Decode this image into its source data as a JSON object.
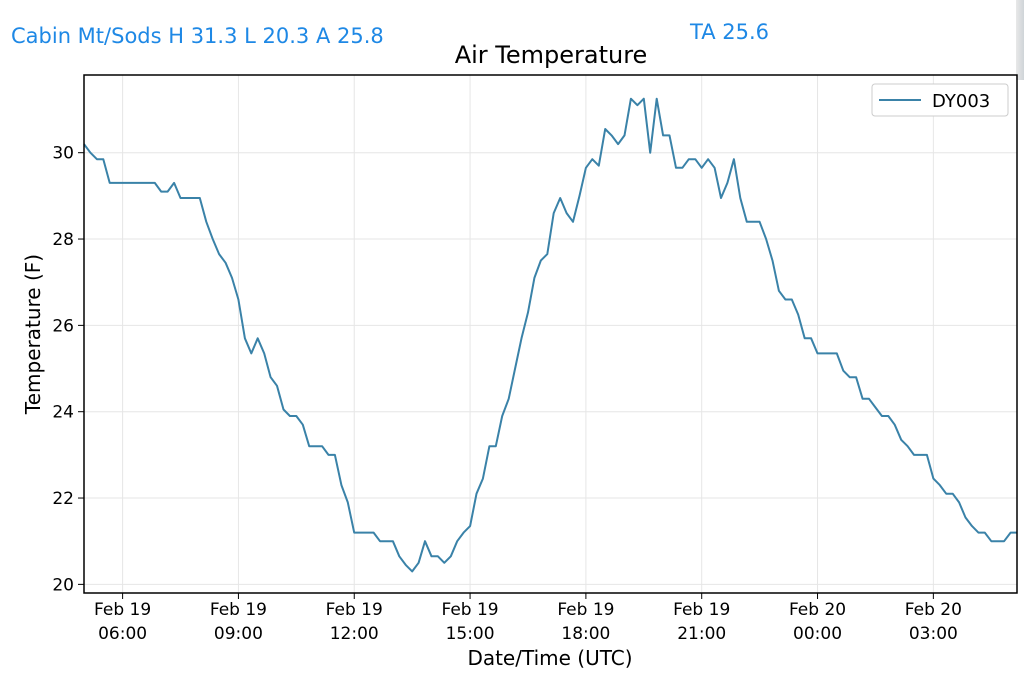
{
  "header": {
    "station_summary": "Cabin Mt/Sods H 31.3 L 20.3 A 25.8",
    "ta_value": "TA 25.6"
  },
  "colors": {
    "header_text": "#1e88e5",
    "series_line": "#3a82a8",
    "grid": "#e6e6e6",
    "axis": "#000000"
  },
  "chart_data": {
    "type": "line",
    "title": "Air Temperature",
    "xlabel": "Date/Time (UTC)",
    "ylabel": "Temperature (F)",
    "xlim": [
      "2019-02-19T05:00",
      "2019-02-20T05:10"
    ],
    "ylim": [
      19.8,
      31.8
    ],
    "grid": true,
    "legend_position": "top-right",
    "x_ticks": [
      {
        "t": "2019-02-19T06:00",
        "line1": "Feb 19",
        "line2": "06:00"
      },
      {
        "t": "2019-02-19T09:00",
        "line1": "Feb 19",
        "line2": "09:00"
      },
      {
        "t": "2019-02-19T12:00",
        "line1": "Feb 19",
        "line2": "12:00"
      },
      {
        "t": "2019-02-19T15:00",
        "line1": "Feb 19",
        "line2": "15:00"
      },
      {
        "t": "2019-02-19T18:00",
        "line1": "Feb 19",
        "line2": "18:00"
      },
      {
        "t": "2019-02-19T21:00",
        "line1": "Feb 19",
        "line2": "21:00"
      },
      {
        "t": "2019-02-20T00:00",
        "line1": "Feb 20",
        "line2": "00:00"
      },
      {
        "t": "2019-02-20T03:00",
        "line1": "Feb 20",
        "line2": "03:00"
      }
    ],
    "y_ticks": [
      "20",
      "22",
      "24",
      "26",
      "28",
      "30"
    ],
    "series": [
      {
        "name": "DY003",
        "x": [
          "2019-02-19T05:00",
          "2019-02-19T05:10",
          "2019-02-19T05:20",
          "2019-02-19T05:30",
          "2019-02-19T05:40",
          "2019-02-19T05:50",
          "2019-02-19T06:00",
          "2019-02-19T06:10",
          "2019-02-19T06:20",
          "2019-02-19T06:30",
          "2019-02-19T06:40",
          "2019-02-19T06:50",
          "2019-02-19T07:00",
          "2019-02-19T07:10",
          "2019-02-19T07:20",
          "2019-02-19T07:30",
          "2019-02-19T07:40",
          "2019-02-19T07:50",
          "2019-02-19T08:00",
          "2019-02-19T08:10",
          "2019-02-19T08:20",
          "2019-02-19T08:30",
          "2019-02-19T08:40",
          "2019-02-19T08:50",
          "2019-02-19T09:00",
          "2019-02-19T09:10",
          "2019-02-19T09:20",
          "2019-02-19T09:30",
          "2019-02-19T09:40",
          "2019-02-19T09:50",
          "2019-02-19T10:00",
          "2019-02-19T10:10",
          "2019-02-19T10:20",
          "2019-02-19T10:30",
          "2019-02-19T10:40",
          "2019-02-19T10:50",
          "2019-02-19T11:00",
          "2019-02-19T11:10",
          "2019-02-19T11:20",
          "2019-02-19T11:30",
          "2019-02-19T11:40",
          "2019-02-19T11:50",
          "2019-02-19T12:00",
          "2019-02-19T12:10",
          "2019-02-19T12:20",
          "2019-02-19T12:30",
          "2019-02-19T12:40",
          "2019-02-19T12:50",
          "2019-02-19T13:00",
          "2019-02-19T13:10",
          "2019-02-19T13:20",
          "2019-02-19T13:30",
          "2019-02-19T13:40",
          "2019-02-19T13:50",
          "2019-02-19T14:00",
          "2019-02-19T14:10",
          "2019-02-19T14:20",
          "2019-02-19T14:30",
          "2019-02-19T14:40",
          "2019-02-19T14:50",
          "2019-02-19T15:00",
          "2019-02-19T15:10",
          "2019-02-19T15:20",
          "2019-02-19T15:30",
          "2019-02-19T15:40",
          "2019-02-19T15:50",
          "2019-02-19T16:00",
          "2019-02-19T16:10",
          "2019-02-19T16:20",
          "2019-02-19T16:30",
          "2019-02-19T16:40",
          "2019-02-19T16:50",
          "2019-02-19T17:00",
          "2019-02-19T17:10",
          "2019-02-19T17:20",
          "2019-02-19T17:30",
          "2019-02-19T17:40",
          "2019-02-19T17:50",
          "2019-02-19T18:00",
          "2019-02-19T18:10",
          "2019-02-19T18:20",
          "2019-02-19T18:30",
          "2019-02-19T18:40",
          "2019-02-19T18:50",
          "2019-02-19T19:00",
          "2019-02-19T19:10",
          "2019-02-19T19:20",
          "2019-02-19T19:30",
          "2019-02-19T19:40",
          "2019-02-19T19:50",
          "2019-02-19T20:00",
          "2019-02-19T20:10",
          "2019-02-19T20:20",
          "2019-02-19T20:30",
          "2019-02-19T20:40",
          "2019-02-19T20:50",
          "2019-02-19T21:00",
          "2019-02-19T21:10",
          "2019-02-19T21:20",
          "2019-02-19T21:30",
          "2019-02-19T21:40",
          "2019-02-19T21:50",
          "2019-02-19T22:00",
          "2019-02-19T22:10",
          "2019-02-19T22:20",
          "2019-02-19T22:30",
          "2019-02-19T22:40",
          "2019-02-19T22:50",
          "2019-02-19T23:00",
          "2019-02-19T23:10",
          "2019-02-19T23:20",
          "2019-02-19T23:30",
          "2019-02-19T23:40",
          "2019-02-19T23:50",
          "2019-02-20T00:00",
          "2019-02-20T00:10",
          "2019-02-20T00:20",
          "2019-02-20T00:30",
          "2019-02-20T00:40",
          "2019-02-20T00:50",
          "2019-02-20T01:00",
          "2019-02-20T01:10",
          "2019-02-20T01:20",
          "2019-02-20T01:30",
          "2019-02-20T01:40",
          "2019-02-20T01:50",
          "2019-02-20T02:00",
          "2019-02-20T02:10",
          "2019-02-20T02:20",
          "2019-02-20T02:30",
          "2019-02-20T02:40",
          "2019-02-20T02:50",
          "2019-02-20T03:00",
          "2019-02-20T03:10",
          "2019-02-20T03:20",
          "2019-02-20T03:30",
          "2019-02-20T03:40",
          "2019-02-20T03:50",
          "2019-02-20T04:00",
          "2019-02-20T04:10",
          "2019-02-20T04:20",
          "2019-02-20T04:30",
          "2019-02-20T04:40",
          "2019-02-20T04:50",
          "2019-02-20T05:00",
          "2019-02-20T05:10"
        ],
        "y": [
          30.2,
          30.0,
          29.85,
          29.85,
          29.3,
          29.3,
          29.3,
          29.3,
          29.3,
          29.3,
          29.3,
          29.3,
          29.1,
          29.1,
          29.3,
          28.95,
          28.95,
          28.95,
          28.95,
          28.4,
          28.0,
          27.65,
          27.45,
          27.1,
          26.6,
          25.7,
          25.35,
          25.7,
          25.35,
          24.8,
          24.6,
          24.05,
          23.9,
          23.9,
          23.7,
          23.2,
          23.2,
          23.2,
          23.0,
          23.0,
          22.3,
          21.9,
          21.2,
          21.2,
          21.2,
          21.2,
          21.0,
          21.0,
          21.0,
          20.65,
          20.45,
          20.3,
          20.5,
          21.0,
          20.65,
          20.65,
          20.5,
          20.65,
          21.0,
          21.2,
          21.35,
          22.1,
          22.45,
          23.2,
          23.2,
          23.9,
          24.3,
          25.0,
          25.7,
          26.3,
          27.1,
          27.5,
          27.65,
          28.6,
          28.95,
          28.6,
          28.4,
          29.0,
          29.65,
          29.85,
          29.7,
          30.55,
          30.4,
          30.2,
          30.4,
          31.25,
          31.1,
          31.25,
          30.0,
          31.25,
          30.4,
          30.4,
          29.65,
          29.65,
          29.85,
          29.85,
          29.65,
          29.85,
          29.65,
          28.95,
          29.3,
          29.85,
          28.95,
          28.4,
          28.4,
          28.4,
          28.0,
          27.5,
          26.8,
          26.6,
          26.6,
          26.25,
          25.7,
          25.7,
          25.35,
          25.35,
          25.35,
          25.35,
          24.95,
          24.8,
          24.8,
          24.3,
          24.3,
          24.1,
          23.9,
          23.9,
          23.7,
          23.35,
          23.2,
          23.0,
          23.0,
          23.0,
          22.45,
          22.3,
          22.1,
          22.1,
          21.9,
          21.55,
          21.35,
          21.2,
          21.2,
          21.0,
          21.0,
          21.0,
          21.2,
          21.2
        ]
      }
    ]
  }
}
